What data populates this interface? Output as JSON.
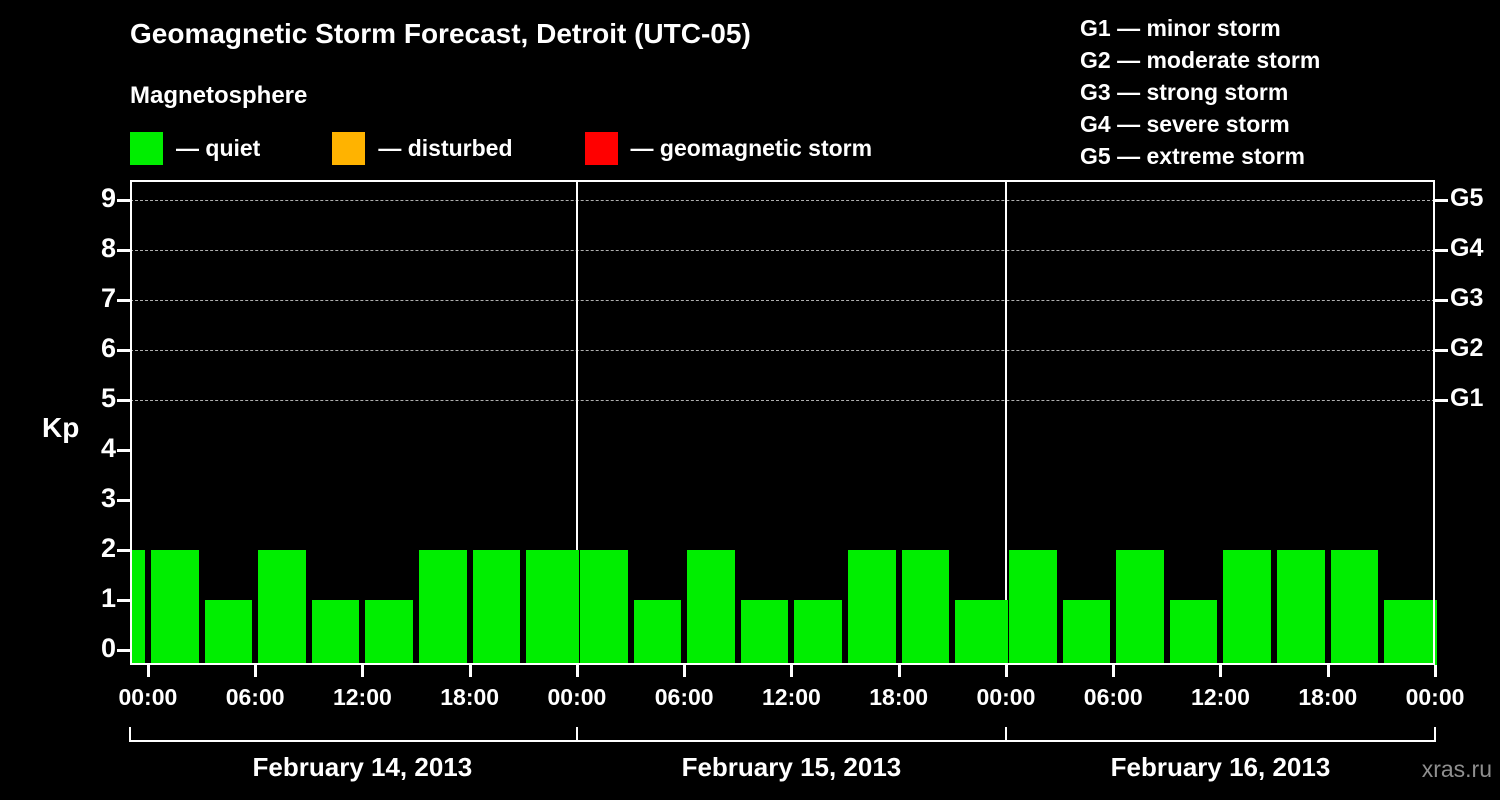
{
  "title": "Geomagnetic Storm Forecast, Detroit (UTC-05)",
  "subtitle": "Magnetosphere",
  "watermark": "xras.ru",
  "colors": {
    "background": "#000000",
    "text": "#ffffff",
    "quiet": "#00ee00",
    "disturbed": "#ffb300",
    "storm": "#ff0000",
    "grid": "#b0b0b0",
    "axis": "#ffffff",
    "watermark": "#8f8f8f"
  },
  "legend": {
    "items": [
      {
        "name": "quiet",
        "label": "— quiet",
        "color": "#00ee00"
      },
      {
        "name": "disturbed",
        "label": "— disturbed",
        "color": "#ffb300"
      },
      {
        "name": "storm",
        "label": "— geomagnetic storm",
        "color": "#ff0000"
      }
    ]
  },
  "storm_scale_legend": {
    "items": [
      "G1 — minor storm",
      "G2 — moderate storm",
      "G3 — strong storm",
      "G4 — severe storm",
      "G5 — extreme storm"
    ]
  },
  "chart_data": {
    "type": "bar",
    "title": "Geomagnetic Storm Forecast, Detroit (UTC-05)",
    "ylabel": "Kp",
    "ylim": [
      0,
      9
    ],
    "y_ticks": [
      0,
      1,
      2,
      3,
      4,
      5,
      6,
      7,
      8,
      9
    ],
    "grid": "dashed horizontal lines at Kp 5-9 only",
    "hours_range": [
      -1,
      72
    ],
    "bar_interval_hours": 3,
    "x_tick_hours": [
      0,
      6,
      12,
      18,
      24,
      30,
      36,
      42,
      48,
      54,
      60,
      66,
      72
    ],
    "x_tick_labels": [
      "00:00",
      "06:00",
      "12:00",
      "18:00",
      "00:00",
      "06:00",
      "12:00",
      "18:00",
      "00:00",
      "06:00",
      "12:00",
      "18:00",
      "00:00"
    ],
    "storm_levels": [
      {
        "label": "G1",
        "kp": 5
      },
      {
        "label": "G2",
        "kp": 6
      },
      {
        "label": "G3",
        "kp": 7
      },
      {
        "label": "G4",
        "kp": 8
      },
      {
        "label": "G5",
        "kp": 9
      }
    ],
    "leading_partial_bar_kp": 2,
    "days": [
      {
        "label": "February 14, 2013",
        "kp_values": [
          2,
          1,
          2,
          1,
          1,
          2,
          2,
          2
        ]
      },
      {
        "label": "February 15, 2013",
        "kp_values": [
          2,
          1,
          2,
          1,
          1,
          2,
          2,
          1
        ]
      },
      {
        "label": "February 16, 2013",
        "kp_values": [
          2,
          1,
          2,
          1,
          2,
          2,
          2,
          1
        ]
      }
    ]
  }
}
